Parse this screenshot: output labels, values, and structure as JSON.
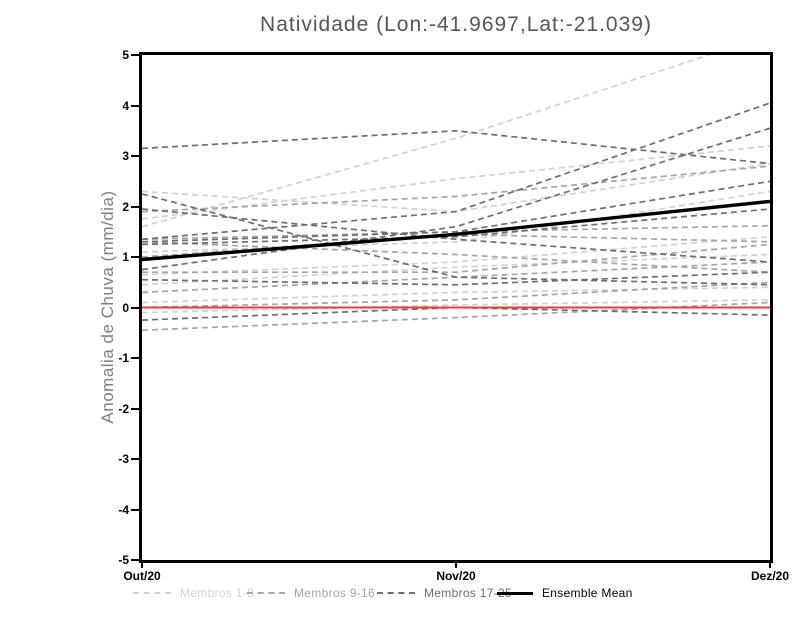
{
  "title": "Natividade (Lon:-41.9697,Lat:-21.039)",
  "chart_data": {
    "type": "line",
    "title": "Natividade (Lon:-41.9697,Lat:-21.039)",
    "xlabel": "",
    "ylabel": "Anomalia de Chuva (mm/dia)",
    "x_categories": [
      "Out/20",
      "Nov/20",
      "Dez/20"
    ],
    "ylim": [
      -5,
      5
    ],
    "y_tick_step": 1,
    "grid": false,
    "legend_position": "bottom",
    "background": "#ffffff",
    "frame_color": "#000000",
    "zero_line": {
      "value": 0,
      "color": "#ee3b33"
    },
    "member_groups": [
      {
        "name": "Membros 1-8",
        "color": "#d2d2d2",
        "style": "dashed",
        "series": [
          {
            "name": "member-1",
            "values": [
              1.6,
              3.35,
              5.4
            ]
          },
          {
            "name": "member-2",
            "values": [
              2.3,
              1.9,
              2.85
            ]
          },
          {
            "name": "member-3",
            "values": [
              1.75,
              2.55,
              3.2
            ]
          },
          {
            "name": "member-4",
            "values": [
              1.1,
              1.3,
              2.3
            ]
          },
          {
            "name": "member-5",
            "values": [
              0.65,
              0.9,
              1.4
            ]
          },
          {
            "name": "member-6",
            "values": [
              0.45,
              0.8,
              1.05
            ]
          },
          {
            "name": "member-7",
            "values": [
              0.1,
              0.3,
              0.4
            ]
          },
          {
            "name": "member-8",
            "values": [
              -0.1,
              0.05,
              0.15
            ]
          }
        ]
      },
      {
        "name": "Membros 9-16",
        "color": "#a6a6a6",
        "style": "dashed",
        "series": [
          {
            "name": "member-9",
            "values": [
              1.9,
              2.2,
              2.8
            ]
          },
          {
            "name": "member-10",
            "values": [
              1.35,
              1.5,
              1.62
            ]
          },
          {
            "name": "member-11",
            "values": [
              1.3,
              1.05,
              0.7
            ]
          },
          {
            "name": "member-12",
            "values": [
              1.0,
              1.45,
              1.3
            ]
          },
          {
            "name": "member-13",
            "values": [
              0.7,
              0.7,
              1.25
            ]
          },
          {
            "name": "member-14",
            "values": [
              0.3,
              0.6,
              0.9
            ]
          },
          {
            "name": "member-15",
            "values": [
              0.0,
              0.15,
              0.5
            ]
          },
          {
            "name": "member-16",
            "values": [
              -0.45,
              -0.2,
              0.1
            ]
          }
        ]
      },
      {
        "name": "Membros 17-25",
        "color": "#6e6e6e",
        "style": "dashed",
        "series": [
          {
            "name": "member-17",
            "values": [
              3.15,
              3.5,
              2.85
            ]
          },
          {
            "name": "member-18",
            "values": [
              2.25,
              0.6,
              0.45
            ]
          },
          {
            "name": "member-19",
            "values": [
              1.95,
              1.35,
              0.9
            ]
          },
          {
            "name": "member-20",
            "values": [
              1.3,
              1.5,
              2.5
            ]
          },
          {
            "name": "member-21",
            "values": [
              1.25,
              1.4,
              1.95
            ]
          },
          {
            "name": "member-22",
            "values": [
              1.35,
              1.9,
              4.05
            ]
          },
          {
            "name": "member-23",
            "values": [
              0.75,
              1.6,
              3.55
            ]
          },
          {
            "name": "member-24",
            "values": [
              0.55,
              0.45,
              0.7
            ]
          },
          {
            "name": "member-25",
            "values": [
              -0.25,
              0.0,
              -0.15
            ]
          }
        ]
      }
    ],
    "ensemble_mean": {
      "name": "Ensemble Mean",
      "color": "#000000",
      "values": [
        0.95,
        1.45,
        2.1
      ]
    }
  },
  "legend": {
    "items": [
      {
        "label": "Membros 1-8",
        "color": "#d2d2d2",
        "style": "dashed"
      },
      {
        "label": "Membros 9-16",
        "color": "#a6a6a6",
        "style": "dashed"
      },
      {
        "label": "Membros 17-25",
        "color": "#6e6e6e",
        "style": "dashed"
      },
      {
        "label": "Ensemble Mean",
        "color": "#000000",
        "style": "solid"
      }
    ]
  }
}
